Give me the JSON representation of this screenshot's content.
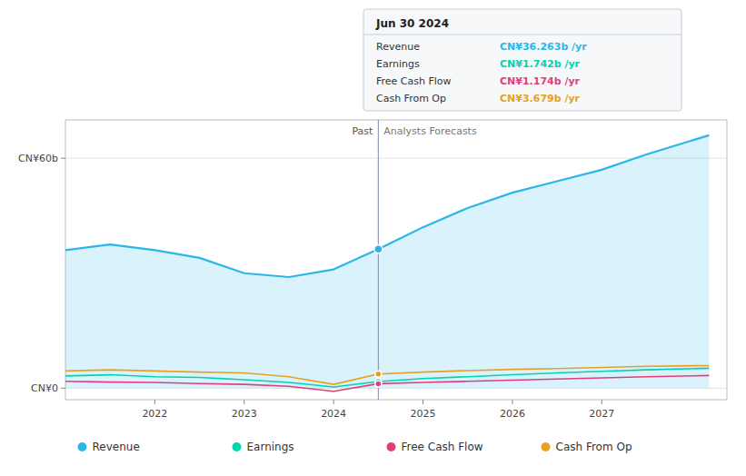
{
  "chart_data": {
    "type": "line",
    "x": [
      2021.0,
      2021.5,
      2022.0,
      2022.5,
      2023.0,
      2023.5,
      2024.0,
      2024.5,
      2025.0,
      2025.5,
      2026.0,
      2026.5,
      2027.0,
      2027.5,
      2028.2
    ],
    "series": [
      {
        "name": "Revenue",
        "type": "area",
        "color": "#2ab7e8",
        "values": [
          36,
          37.5,
          36,
          34,
          30,
          29,
          31,
          36.263,
          42,
          47,
          51,
          54,
          57,
          61,
          66
        ],
        "value_labels": [
          null,
          null,
          null,
          null,
          null,
          null,
          null,
          "CN¥36.263b /yr",
          null,
          null,
          null,
          null,
          null,
          null,
          null
        ]
      },
      {
        "name": "Earnings",
        "type": "line",
        "color": "#00d4b0",
        "values": [
          3.2,
          3.5,
          3.0,
          2.8,
          2.2,
          1.5,
          0.3,
          1.742,
          2.5,
          3.0,
          3.5,
          4.0,
          4.4,
          4.8,
          5.2
        ],
        "value_labels": [
          null,
          null,
          null,
          null,
          null,
          null,
          null,
          "CN¥1.742b /yr",
          null,
          null,
          null,
          null,
          null,
          null,
          null
        ]
      },
      {
        "name": "Free Cash Flow",
        "type": "line",
        "color": "#e0407a",
        "values": [
          1.8,
          1.6,
          1.5,
          1.2,
          1.0,
          0.5,
          -0.8,
          1.174,
          1.5,
          1.8,
          2.1,
          2.4,
          2.7,
          3.0,
          3.3
        ],
        "value_labels": [
          null,
          null,
          null,
          null,
          null,
          null,
          null,
          "CN¥1.174b /yr",
          null,
          null,
          null,
          null,
          null,
          null,
          null
        ]
      },
      {
        "name": "Cash From Op",
        "type": "line",
        "color": "#e8a020",
        "values": [
          4.5,
          4.8,
          4.5,
          4.2,
          4.0,
          3.0,
          1.0,
          3.679,
          4.2,
          4.6,
          4.9,
          5.1,
          5.4,
          5.7,
          5.9
        ],
        "value_labels": [
          null,
          null,
          null,
          null,
          null,
          null,
          null,
          "CN¥3.679b /yr",
          null,
          null,
          null,
          null,
          null,
          null,
          null
        ]
      }
    ],
    "annotations": [
      {
        "x": 2024.5,
        "label": "Past"
      },
      {
        "x": 2024.5,
        "label": "Analysts Forecasts"
      },
      {
        "x": 2024.5,
        "label": "Jun 30 2024"
      }
    ],
    "xlim": [
      2021.0,
      2028.4
    ],
    "xticks": [
      2022,
      2023,
      2024,
      2025,
      2026,
      2027
    ],
    "ylim": [
      -3,
      70
    ],
    "yticks": [
      {
        "value": 0,
        "label": "CN¥0"
      },
      {
        "value": 60,
        "label": "CN¥60b"
      }
    ],
    "grid": true,
    "legend": "bottom"
  }
}
